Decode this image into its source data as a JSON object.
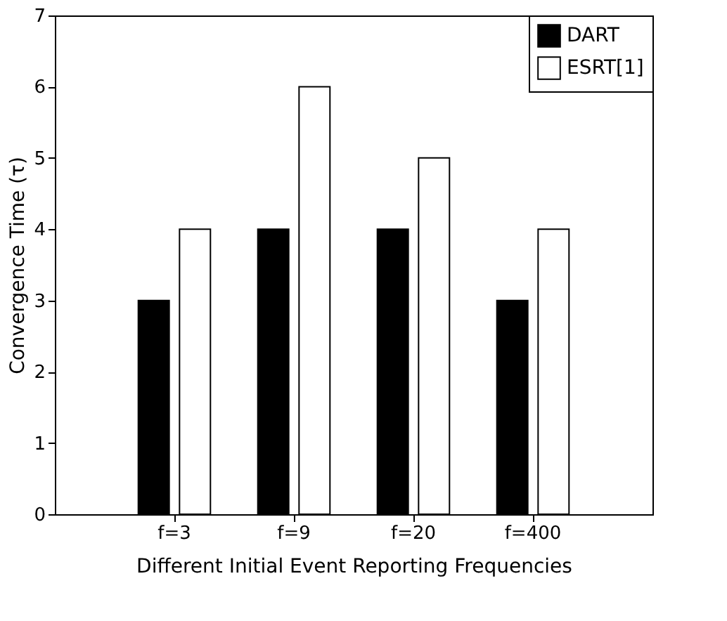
{
  "chart_data": {
    "type": "bar",
    "xlabel": "Different Initial Event Reporting Frequencies",
    "ylabel": "Convergence Time (τ)",
    "categories": [
      "f=3",
      "f=9",
      "f=20",
      "f=400"
    ],
    "series": [
      {
        "name": "DART",
        "color": "#000000",
        "values": [
          3,
          4,
          4,
          3
        ]
      },
      {
        "name": "ESRT[1]",
        "color": "#ffffff",
        "values": [
          4,
          6,
          5,
          4
        ]
      }
    ],
    "ylim": [
      0,
      7
    ],
    "yticks": [
      0,
      1,
      2,
      3,
      4,
      5,
      6,
      7
    ],
    "grid": false,
    "legend": "top right"
  }
}
